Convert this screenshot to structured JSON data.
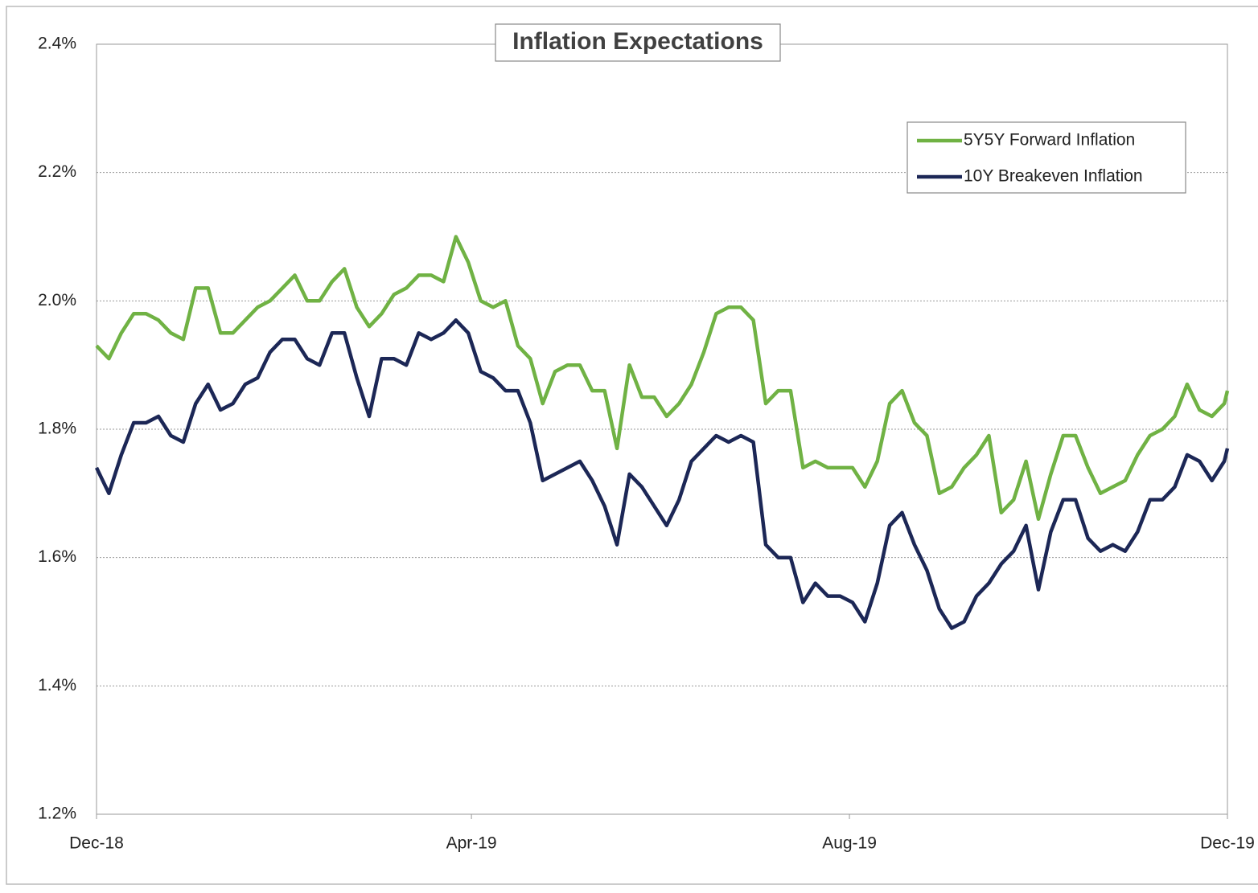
{
  "chart_data": {
    "type": "line",
    "title": "Inflation Expectations",
    "x": [
      0,
      4,
      8,
      12,
      16,
      20,
      24,
      28,
      32,
      36,
      40,
      44,
      48,
      52,
      56,
      60,
      64,
      68,
      72,
      76,
      80,
      84,
      88,
      92,
      96,
      100,
      104,
      108,
      112,
      116,
      120,
      124,
      128,
      132,
      136,
      140,
      144,
      148,
      152,
      156,
      160,
      164,
      168,
      172,
      176,
      180,
      184,
      188,
      192,
      196,
      200,
      204,
      208,
      212,
      216,
      220,
      224,
      228,
      232,
      236,
      240,
      244,
      248,
      252,
      256,
      260,
      264,
      268,
      272,
      276,
      280,
      284,
      288,
      292,
      296,
      300,
      304,
      308,
      312,
      316,
      320,
      324,
      328,
      332,
      336,
      340,
      344,
      348,
      352,
      356,
      360,
      364,
      365
    ],
    "xlim": [
      0,
      365
    ],
    "xticks": [
      {
        "value": 0,
        "label": "Dec-18"
      },
      {
        "value": 121,
        "label": "Apr-19"
      },
      {
        "value": 243,
        "label": "Aug-19"
      },
      {
        "value": 365,
        "label": "Dec-19"
      }
    ],
    "ylim": [
      1.2,
      2.4
    ],
    "yticks": [
      {
        "value": 1.2,
        "label": "1.2%"
      },
      {
        "value": 1.4,
        "label": "1.4%"
      },
      {
        "value": 1.6,
        "label": "1.6%"
      },
      {
        "value": 1.8,
        "label": "1.8%"
      },
      {
        "value": 2.0,
        "label": "2.0%"
      },
      {
        "value": 2.2,
        "label": "2.2%"
      },
      {
        "value": 2.4,
        "label": "2.4%"
      }
    ],
    "grid": true,
    "legend": "upper right",
    "series": [
      {
        "name": "5Y5Y Forward Inflation",
        "color": "#70b244",
        "values": [
          1.93,
          1.91,
          1.95,
          1.98,
          1.98,
          1.97,
          1.95,
          1.94,
          2.02,
          2.02,
          1.95,
          1.95,
          1.97,
          1.99,
          2.0,
          2.02,
          2.04,
          2.0,
          2.0,
          2.03,
          2.05,
          1.99,
          1.96,
          1.98,
          2.01,
          2.02,
          2.04,
          2.04,
          2.03,
          2.1,
          2.06,
          2.0,
          1.99,
          2.0,
          1.93,
          1.91,
          1.84,
          1.89,
          1.9,
          1.9,
          1.86,
          1.86,
          1.77,
          1.9,
          1.85,
          1.85,
          1.82,
          1.84,
          1.87,
          1.92,
          1.98,
          1.99,
          1.99,
          1.97,
          1.84,
          1.86,
          1.86,
          1.74,
          1.75,
          1.74,
          1.74,
          1.74,
          1.71,
          1.75,
          1.84,
          1.86,
          1.81,
          1.79,
          1.7,
          1.71,
          1.74,
          1.76,
          1.79,
          1.67,
          1.69,
          1.75,
          1.66,
          1.73,
          1.79,
          1.79,
          1.74,
          1.7,
          1.71,
          1.72,
          1.76,
          1.79,
          1.8,
          1.82,
          1.87,
          1.83,
          1.82,
          1.84,
          1.86
        ]
      },
      {
        "name": "10Y Breakeven Inflation",
        "color": "#1c2756",
        "values": [
          1.74,
          1.7,
          1.76,
          1.81,
          1.81,
          1.82,
          1.79,
          1.78,
          1.84,
          1.87,
          1.83,
          1.84,
          1.87,
          1.88,
          1.92,
          1.94,
          1.94,
          1.91,
          1.9,
          1.95,
          1.95,
          1.88,
          1.82,
          1.91,
          1.91,
          1.9,
          1.95,
          1.94,
          1.95,
          1.97,
          1.95,
          1.89,
          1.88,
          1.86,
          1.86,
          1.81,
          1.72,
          1.73,
          1.74,
          1.75,
          1.72,
          1.68,
          1.62,
          1.73,
          1.71,
          1.68,
          1.65,
          1.69,
          1.75,
          1.77,
          1.79,
          1.78,
          1.79,
          1.78,
          1.62,
          1.6,
          1.6,
          1.53,
          1.56,
          1.54,
          1.54,
          1.53,
          1.5,
          1.56,
          1.65,
          1.67,
          1.62,
          1.58,
          1.52,
          1.49,
          1.5,
          1.54,
          1.56,
          1.59,
          1.61,
          1.65,
          1.55,
          1.64,
          1.69,
          1.69,
          1.63,
          1.61,
          1.62,
          1.61,
          1.64,
          1.69,
          1.69,
          1.71,
          1.76,
          1.75,
          1.72,
          1.75,
          1.77
        ]
      }
    ]
  }
}
